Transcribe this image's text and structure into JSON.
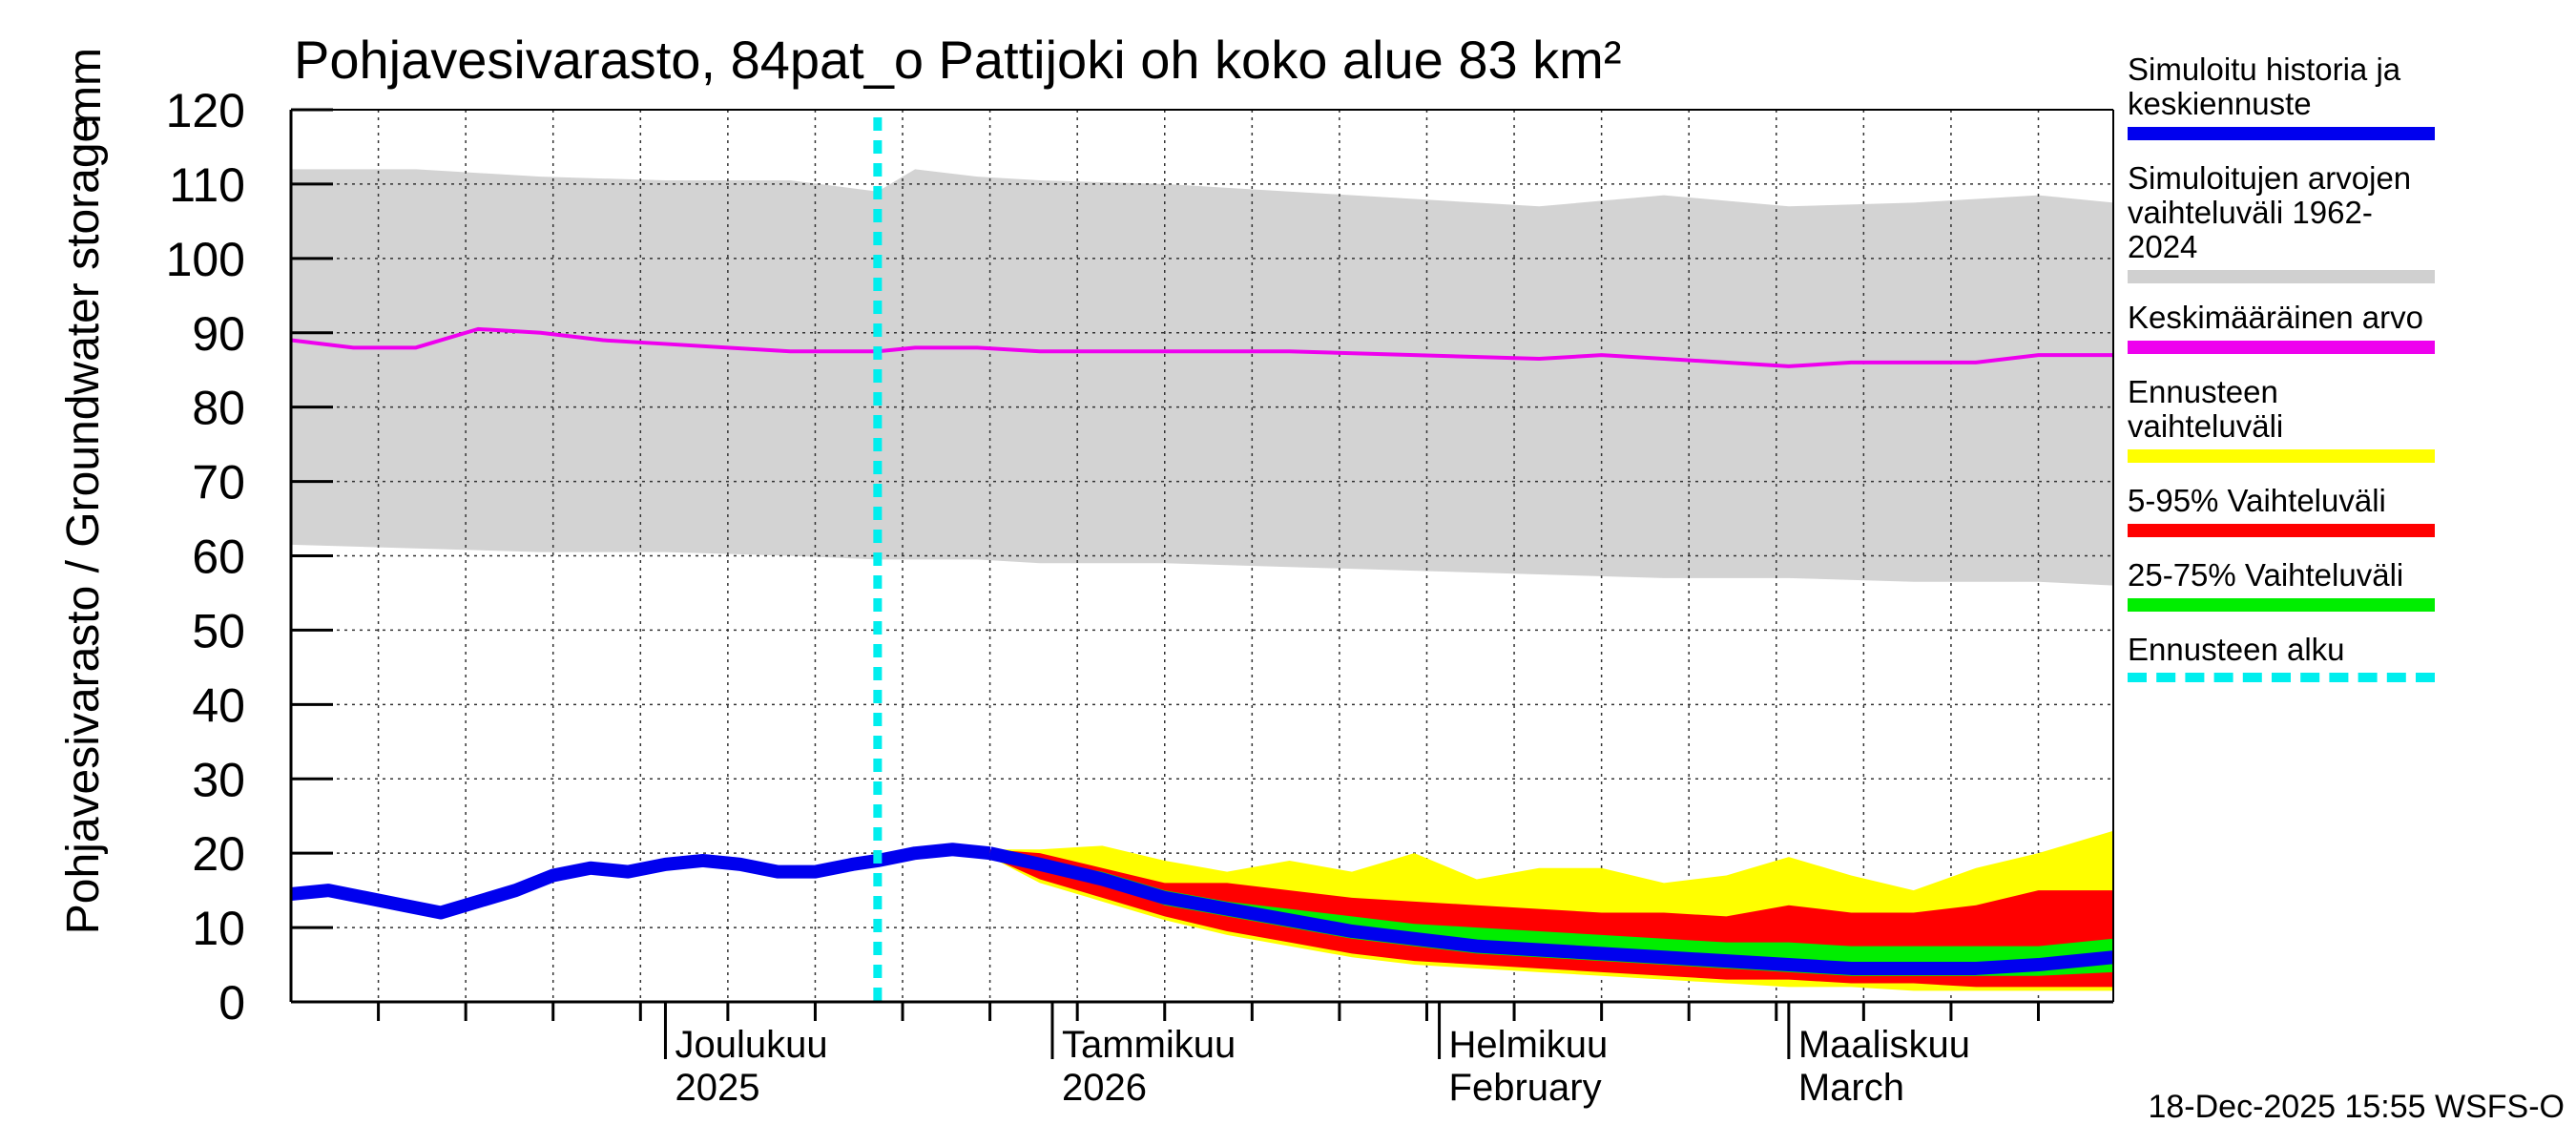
{
  "title": "Pohjavesivarasto, 84pat_o Pattijoki oh koko alue 83 km²",
  "y_label": "Pohjavesivarasto / Groundwater storage",
  "y_unit": "mm",
  "footer": "18-Dec-2025 15:55 WSFS-O",
  "legend": [
    {
      "label": "Simuloitu historia ja keskiennuste",
      "color": "#0000ee"
    },
    {
      "label": "Simuloitujen arvojen vaihteluväli 1962-2024",
      "color": "#d0d0d0"
    },
    {
      "label": "Keskimääräinen arvo",
      "color": "#ee00ee"
    },
    {
      "label": "Ennusteen vaihteluväli",
      "color": "#ffff00"
    },
    {
      "label": "5-95% Vaihteluväli",
      "color": "#ff0000"
    },
    {
      "label": "25-75% Vaihteluväli",
      "color": "#00ee00"
    },
    {
      "label": "Ennusteen alku",
      "color": "#00eeee"
    }
  ],
  "chart_data": {
    "type": "area",
    "x_unit": "days since 2025-11-01",
    "x_range": [
      0,
      146
    ],
    "ylim": [
      0,
      120
    ],
    "yticks": [
      0,
      10,
      20,
      30,
      40,
      50,
      60,
      70,
      80,
      90,
      100,
      110,
      120
    ],
    "month_starts": [
      0,
      30,
      61,
      92,
      120,
      151
    ],
    "month_labels": [
      {
        "x": 30,
        "line1": "Joulukuu",
        "line2": "2025"
      },
      {
        "x": 61,
        "line1": "Tammikuu",
        "line2": "2026"
      },
      {
        "x": 92,
        "line1": "Helmikuu",
        "line2": "February"
      },
      {
        "x": 120,
        "line1": "Maaliskuu",
        "line2": "March"
      }
    ],
    "forecast_start": 47,
    "hist_range": {
      "x": [
        0,
        10,
        20,
        30,
        40,
        47,
        50,
        55,
        60,
        70,
        80,
        90,
        100,
        110,
        120,
        130,
        140,
        146
      ],
      "upper": [
        112,
        112,
        111,
        110.5,
        110.5,
        109,
        112,
        111,
        110.5,
        110,
        109,
        108,
        107,
        108.5,
        107,
        107.5,
        108.5,
        107.5
      ],
      "lower": [
        61.5,
        61,
        60.5,
        60.5,
        60,
        59.5,
        59.5,
        59.5,
        59,
        59,
        58.5,
        58,
        57.5,
        57,
        57,
        56.5,
        56.5,
        56
      ]
    },
    "mean": {
      "x": [
        0,
        5,
        10,
        15,
        20,
        25,
        30,
        35,
        40,
        45,
        47,
        50,
        55,
        60,
        70,
        80,
        90,
        100,
        105,
        110,
        120,
        125,
        130,
        135,
        140,
        146
      ],
      "value": [
        89,
        88,
        88,
        90.5,
        90,
        89,
        88.5,
        88,
        87.5,
        87.5,
        87.5,
        88,
        88,
        87.5,
        87.5,
        87.5,
        87,
        86.5,
        87,
        86.5,
        85.5,
        86,
        86,
        86,
        87,
        87
      ]
    },
    "history": {
      "x": [
        0,
        3,
        6,
        9,
        12,
        15,
        18,
        21,
        24,
        27,
        30,
        33,
        36,
        39,
        42,
        45,
        47,
        50,
        53,
        56
      ],
      "value": [
        14.5,
        15,
        14,
        13,
        12,
        13.5,
        15,
        17,
        18,
        17.5,
        18.5,
        19,
        18.5,
        17.5,
        17.5,
        18.5,
        19,
        20,
        20.5,
        20
      ]
    },
    "forecast_x": [
      56,
      60,
      65,
      70,
      75,
      80,
      85,
      90,
      95,
      100,
      105,
      110,
      115,
      120,
      125,
      130,
      135,
      140,
      146
    ],
    "median": [
      20,
      18.5,
      16.5,
      14,
      12.5,
      11,
      9.5,
      8.5,
      7.5,
      7,
      6.5,
      6,
      5.5,
      5,
      4.5,
      4.5,
      4.5,
      5,
      6
    ],
    "range_max": [
      20.5,
      20.5,
      21,
      19,
      17.5,
      19,
      17.5,
      20,
      16.5,
      18,
      18,
      16,
      17,
      19.5,
      17,
      15,
      18,
      20,
      23
    ],
    "range_min": [
      19.5,
      16,
      13.5,
      11,
      9,
      7.5,
      6,
      5,
      4.5,
      4,
      3.5,
      3,
      2.5,
      2,
      2,
      1.5,
      1.5,
      1.5,
      1.5
    ],
    "p95": [
      20.5,
      20,
      18,
      16,
      16,
      15,
      14,
      13.5,
      13,
      12.5,
      12,
      12,
      11.5,
      13,
      12,
      12,
      13,
      15,
      15
    ],
    "p05": [
      19.5,
      16.5,
      14,
      11.5,
      9.5,
      8,
      6.5,
      5.5,
      5,
      4.5,
      4,
      3.5,
      3,
      3,
      2.5,
      2.5,
      2,
      2,
      2
    ],
    "p75": [
      20,
      19,
      17.5,
      15,
      13.5,
      12.5,
      11.5,
      10.5,
      10,
      9.5,
      9,
      8.5,
      8,
      8,
      7.5,
      7.5,
      7.5,
      7.5,
      8.5
    ],
    "p25": [
      20,
      18,
      16,
      13,
      11.5,
      10,
      8.5,
      7.5,
      6.5,
      6,
      5.5,
      5,
      4.5,
      4,
      3.5,
      3.5,
      3.5,
      3.5,
      4
    ]
  }
}
